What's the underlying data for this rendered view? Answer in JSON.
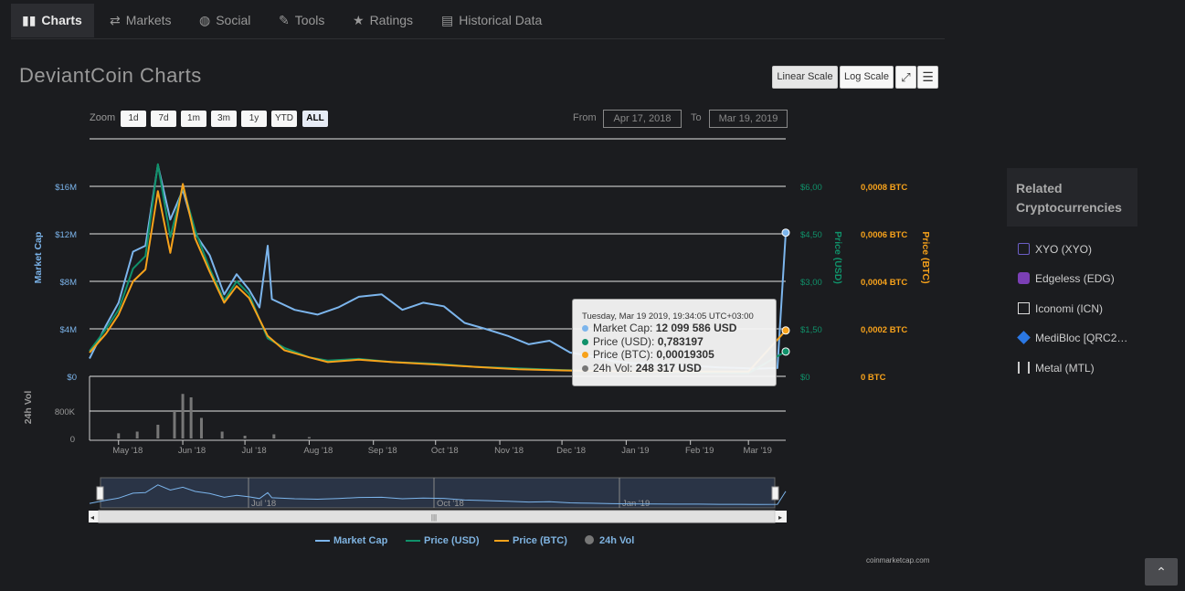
{
  "tabs": [
    {
      "label": "Charts",
      "icon": "bar-chart-icon",
      "active": true
    },
    {
      "label": "Markets",
      "icon": "exchange-arrows-icon",
      "active": false
    },
    {
      "label": "Social",
      "icon": "globe-icon",
      "active": false
    },
    {
      "label": "Tools",
      "icon": "wrench-icon",
      "active": false
    },
    {
      "label": "Ratings",
      "icon": "star-icon",
      "active": false
    },
    {
      "label": "Historical Data",
      "icon": "table-icon",
      "active": false
    }
  ],
  "page_title": "DeviantCoin Charts",
  "scale_buttons": {
    "linear": "Linear Scale",
    "log": "Log Scale"
  },
  "zoom": {
    "label": "Zoom",
    "options": [
      "1d",
      "7d",
      "1m",
      "3m",
      "1y",
      "YTD",
      "ALL"
    ],
    "selected": "ALL"
  },
  "range": {
    "from_label": "From",
    "from": "Apr 17, 2018",
    "to_label": "To",
    "to": "Mar 19, 2019"
  },
  "tooltip": {
    "header": "Tuesday, Mar 19 2019, 19:34:05 UTC+03:00",
    "rows": [
      {
        "name": "Market Cap",
        "value": "12 099 586 USD",
        "color": "#7cb5ec"
      },
      {
        "name": "Price (USD)",
        "value": "0,783197",
        "color": "#10916a"
      },
      {
        "name": "Price (BTC)",
        "value": "0,00019305",
        "color": "#f7a21b"
      },
      {
        "name": "24h Vol",
        "value": "248 317 USD",
        "color": "#777777"
      }
    ]
  },
  "legend": [
    {
      "name": "Market Cap",
      "color": "#7cb5ec",
      "type": "line"
    },
    {
      "name": "Price (USD)",
      "color": "#10916a",
      "type": "line"
    },
    {
      "name": "Price (BTC)",
      "color": "#f7a21b",
      "type": "line"
    },
    {
      "name": "24h Vol",
      "color": "#777777",
      "type": "dot"
    }
  ],
  "credit": "coinmarketcap.com",
  "related": {
    "title": "Related Cryptocurrencies",
    "items": [
      {
        "label": "XYO (XYO)",
        "icon": "xyo-coin-icon",
        "color": "#6c5ec6"
      },
      {
        "label": "Edgeless (EDG)",
        "icon": "edgeless-coin-icon",
        "color": "#7b3fb5"
      },
      {
        "label": "Iconomi (ICN)",
        "icon": "iconomi-coin-icon",
        "color": "#dddddd"
      },
      {
        "label": "MediBloc [QRC2…",
        "icon": "medibloc-coin-icon",
        "color": "#2b78e4"
      },
      {
        "label": "Metal (MTL)",
        "icon": "metal-coin-icon",
        "color": "#cccccc"
      }
    ]
  },
  "chart_data": {
    "type": "line",
    "x_labels": [
      "May '18",
      "Jun '18",
      "Jul '18",
      "Aug '18",
      "Sep '18",
      "Oct '18",
      "Nov '18",
      "Dec '18",
      "Jan '19",
      "Feb '19",
      "Mar '19"
    ],
    "x_start": "Apr 17, 2018",
    "x_end": "Mar 19, 2019",
    "axes": {
      "market_cap": {
        "label": "Market Cap",
        "ticks": [
          "$0",
          "$4M",
          "$8M",
          "$12M",
          "$16M"
        ],
        "range": [
          0,
          20000000
        ],
        "color": "#7cb5ec"
      },
      "price_usd": {
        "label": "Price (USD)",
        "ticks": [
          "$0",
          "$1,50",
          "$3,00",
          "$4,50",
          "$6,00"
        ],
        "range": [
          0,
          7.5
        ],
        "color": "#10916a"
      },
      "price_btc": {
        "label": "Price (BTC)",
        "ticks": [
          "0 BTC",
          "0,0002 BTC",
          "0,0004 BTC",
          "0,0006 BTC",
          "0,0008 BTC"
        ],
        "range": [
          0,
          0.001
        ],
        "color": "#f7a21b"
      },
      "volume": {
        "label": "24h Vol",
        "ticks": [
          "0",
          "800K"
        ],
        "range": [
          0,
          1600000
        ],
        "color": "#777777"
      }
    },
    "series": [
      {
        "name": "Market Cap",
        "axis": "market_cap",
        "x": [
          "Apr 17, 2018",
          "Apr 25, 2018",
          "May 1, 2018",
          "May 8, 2018",
          "May 14, 2018",
          "May 20, 2018",
          "May 26, 2018",
          "Jun 1, 2018",
          "Jun 7, 2018",
          "Jun 14, 2018",
          "Jun 21, 2018",
          "Jun 27, 2018",
          "Jul 3, 2018",
          "Jul 8, 2018",
          "Jul 12, 2018",
          "Jul 14, 2018",
          "Jul 25, 2018",
          "Aug 5, 2018",
          "Aug 15, 2018",
          "Aug 25, 2018",
          "Sep 5, 2018",
          "Sep 15, 2018",
          "Sep 25, 2018",
          "Oct 5, 2018",
          "Oct 15, 2018",
          "Oct 25, 2018",
          "Nov 5, 2018",
          "Nov 15, 2018",
          "Nov 25, 2018",
          "Dec 5, 2018",
          "Dec 15, 2018",
          "Dec 25, 2018",
          "Jan 5, 2019",
          "Jan 15, 2019",
          "Jan 25, 2019",
          "Feb 5, 2019",
          "Feb 15, 2019",
          "Feb 25, 2019",
          "Mar 5, 2019",
          "Mar 15, 2019",
          "Mar 19, 2019"
        ],
        "values": [
          1500000,
          4300000,
          6200000,
          10500000,
          11000000,
          17800000,
          13200000,
          15700000,
          12000000,
          10200000,
          6900000,
          8600000,
          7300000,
          5800000,
          11000000,
          6500000,
          5600000,
          5200000,
          5800000,
          6700000,
          6900000,
          5600000,
          6200000,
          5900000,
          4500000,
          4000000,
          3400000,
          2700000,
          3000000,
          2000000,
          1700000,
          1300000,
          1100000,
          1050000,
          900000,
          850000,
          750000,
          700000,
          650000,
          700000,
          12099586
        ]
      },
      {
        "name": "Price (USD)",
        "axis": "price_usd",
        "x": [
          "Apr 17, 2018",
          "Apr 25, 2018",
          "May 1, 2018",
          "May 8, 2018",
          "May 14, 2018",
          "May 20, 2018",
          "May 26, 2018",
          "Jun 1, 2018",
          "Jun 7, 2018",
          "Jun 14, 2018",
          "Jun 21, 2018",
          "Jun 27, 2018",
          "Jul 3, 2018",
          "Jul 8, 2018",
          "Jul 12, 2018",
          "Jul 20, 2018",
          "Aug 1, 2018",
          "Aug 10, 2018",
          "Aug 25, 2018",
          "Sep 10, 2018",
          "Oct 1, 2018",
          "Oct 20, 2018",
          "Nov 10, 2018",
          "Dec 1, 2018",
          "Jan 1, 2019",
          "Feb 1, 2019",
          "Mar 1, 2019",
          "Mar 19, 2019"
        ],
        "values": [
          0.8,
          1.5,
          2.1,
          3.4,
          3.8,
          6.7,
          4.4,
          6.0,
          4.6,
          3.4,
          2.4,
          3.0,
          2.6,
          1.8,
          1.2,
          0.9,
          0.6,
          0.5,
          0.55,
          0.45,
          0.4,
          0.3,
          0.25,
          0.2,
          0.15,
          0.12,
          0.1,
          0.783197
        ]
      },
      {
        "name": "Price (BTC)",
        "axis": "price_btc",
        "x": [
          "Apr 17, 2018",
          "Apr 25, 2018",
          "May 1, 2018",
          "May 8, 2018",
          "May 14, 2018",
          "May 20, 2018",
          "May 26, 2018",
          "Jun 1, 2018",
          "Jun 7, 2018",
          "Jun 14, 2018",
          "Jun 21, 2018",
          "Jun 27, 2018",
          "Jul 3, 2018",
          "Jul 8, 2018",
          "Jul 12, 2018",
          "Jul 20, 2018",
          "Aug 1, 2018",
          "Aug 10, 2018",
          "Aug 25, 2018",
          "Sep 10, 2018",
          "Oct 1, 2018",
          "Oct 20, 2018",
          "Nov 10, 2018",
          "Dec 1, 2018",
          "Jan 1, 2019",
          "Feb 1, 2019",
          "Mar 1, 2019",
          "Mar 19, 2019"
        ],
        "values": [
          0.0001,
          0.00018,
          0.00026,
          0.0004,
          0.00045,
          0.00078,
          0.00052,
          0.00081,
          0.00058,
          0.00044,
          0.00031,
          0.00038,
          0.00033,
          0.00024,
          0.00017,
          0.00011,
          8e-05,
          6e-05,
          7e-05,
          6e-05,
          5e-05,
          4e-05,
          3e-05,
          2.5e-05,
          2e-05,
          2e-05,
          2e-05,
          0.00019305
        ]
      },
      {
        "name": "24h Vol",
        "axis": "volume",
        "x": [
          "May 1, 2018",
          "May 10, 2018",
          "May 20, 2018",
          "May 28, 2018",
          "Jun 1, 2018",
          "Jun 5, 2018",
          "Jun 10, 2018",
          "Jun 20, 2018",
          "Jul 1, 2018",
          "Jul 15, 2018",
          "Aug 1, 2018"
        ],
        "values": [
          150000,
          200000,
          400000,
          800000,
          1300000,
          1200000,
          600000,
          200000,
          80000,
          120000,
          40000
        ]
      }
    ]
  }
}
